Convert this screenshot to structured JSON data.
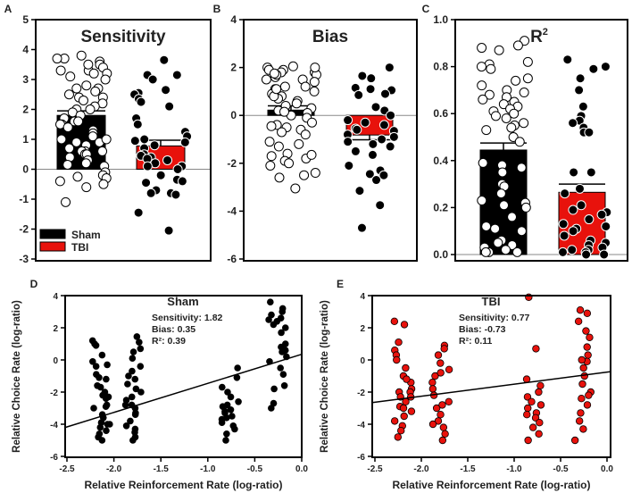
{
  "colors": {
    "sham": "#000000",
    "tbi": "#e8120c",
    "zero_line": "#888888"
  },
  "chart_data": [
    {
      "panel": "A",
      "type": "bar",
      "title": "Sensitivity",
      "ylim": [
        -3,
        5
      ],
      "yticks": [
        "5",
        "4",
        "3",
        "2",
        "1",
        "0",
        "-1",
        "-2",
        "-3"
      ],
      "legend": {
        "placement": "bottom-left",
        "entries": [
          "Sham",
          "TBI"
        ]
      },
      "series": [
        {
          "name": "Sham",
          "mean": 1.8,
          "sem": 0.15,
          "points": [
            3.7,
            3.8,
            3.6,
            3.5,
            3.4,
            3.3,
            3.3,
            3.2,
            3.1,
            3.0,
            2.8,
            2.7,
            2.6,
            2.5,
            2.4,
            2.4,
            2.3,
            2.2,
            2.1,
            2.0,
            1.9,
            1.8,
            1.7,
            1.6,
            1.5,
            1.5,
            1.4,
            1.3,
            1.2,
            1.1,
            1.0,
            0.9,
            0.9,
            0.8,
            0.7,
            0.6,
            0.6,
            0.5,
            0.5,
            0.4,
            0.3,
            0.2,
            0.15,
            0.1,
            -0.1,
            -0.2,
            -0.25,
            -0.3,
            -0.4,
            -0.5,
            -0.6,
            -1.1,
            3.7,
            3.5,
            3.2,
            2.7,
            2.0,
            1.6,
            1.0,
            0.6
          ]
        },
        {
          "name": "TBI",
          "mean": 0.78,
          "sem": 0.19,
          "points": [
            3.65,
            3.15,
            3.15,
            3.0,
            2.65,
            2.55,
            2.5,
            2.35,
            2.25,
            2.1,
            1.7,
            1.5,
            1.25,
            1.1,
            1.0,
            0.95,
            0.9,
            0.8,
            0.7,
            0.5,
            0.45,
            0.4,
            0.35,
            0.3,
            0.2,
            0.1,
            0.1,
            0.0,
            -0.2,
            -0.35,
            -0.4,
            -0.45,
            -0.7,
            -0.8,
            -0.8,
            -0.85,
            -1.45,
            -2.05
          ]
        }
      ]
    },
    {
      "panel": "B",
      "type": "bar",
      "title": "Bias",
      "ylim": [
        -6,
        4
      ],
      "yticks": [
        "4",
        "2",
        "0",
        "-2",
        "-4",
        "-6"
      ],
      "series": [
        {
          "name": "Sham",
          "mean": 0.22,
          "sem": 0.18,
          "points": [
            2.0,
            1.9,
            1.8,
            1.7,
            1.6,
            1.5,
            1.4,
            1.2,
            1.1,
            1.0,
            0.9,
            0.8,
            0.7,
            0.6,
            0.4,
            0.3,
            0.2,
            0.1,
            0.0,
            -0.1,
            -0.3,
            -0.4,
            -0.5,
            -0.6,
            -0.7,
            -0.8,
            -1.1,
            -1.2,
            -1.3,
            -1.6,
            -1.7,
            -1.8,
            -1.9,
            -2.0,
            -2.1,
            -2.4,
            -2.5,
            -2.6,
            -3.05,
            2.0,
            1.9,
            1.8,
            1.7,
            1.5,
            1.2,
            1.0,
            0.8,
            0.5,
            2.05,
            1.75,
            1.1,
            0.15,
            -0.45,
            -1.65
          ]
        },
        {
          "name": "TBI",
          "mean": -0.82,
          "sem": 0.2,
          "points": [
            2.0,
            1.65,
            1.55,
            1.15,
            1.1,
            1.05,
            0.9,
            0.85,
            0.35,
            0.2,
            0.0,
            -0.2,
            -0.3,
            -0.4,
            -0.55,
            -0.6,
            -0.65,
            -0.8,
            -0.9,
            -1.0,
            -1.1,
            -1.2,
            -1.3,
            -1.5,
            -1.65,
            -2.1,
            -2.3,
            -2.45,
            -2.5,
            -2.7,
            -3.15,
            -3.75,
            -4.7
          ]
        }
      ]
    },
    {
      "panel": "C",
      "type": "bar",
      "title": "R",
      "title_sup": "2",
      "ylim": [
        0,
        1.0
      ],
      "yticks": [
        "1.0",
        "0.8",
        "0.6",
        "0.4",
        "0.2",
        "0.0"
      ],
      "series": [
        {
          "name": "Sham",
          "mean": 0.445,
          "sem": 0.03,
          "points": [
            0.91,
            0.88,
            0.87,
            0.89,
            0.81,
            0.79,
            0.82,
            0.8,
            0.75,
            0.74,
            0.72,
            0.7,
            0.69,
            0.68,
            0.67,
            0.66,
            0.65,
            0.64,
            0.63,
            0.62,
            0.61,
            0.6,
            0.59,
            0.58,
            0.56,
            0.55,
            0.54,
            0.53,
            0.5,
            0.48,
            0.39,
            0.38,
            0.37,
            0.35,
            0.3,
            0.29,
            0.26,
            0.23,
            0.22,
            0.21,
            0.2,
            0.16,
            0.12,
            0.11,
            0.1,
            0.06,
            0.05,
            0.04,
            0.03,
            0.02,
            0.01,
            0.01,
            0.01
          ]
        },
        {
          "name": "TBI",
          "mean": 0.265,
          "sem": 0.035,
          "points": [
            0.83,
            0.8,
            0.79,
            0.75,
            0.7,
            0.63,
            0.59,
            0.57,
            0.56,
            0.54,
            0.52,
            0.52,
            0.35,
            0.35,
            0.35,
            0.28,
            0.26,
            0.21,
            0.19,
            0.18,
            0.17,
            0.15,
            0.13,
            0.12,
            0.11,
            0.1,
            0.08,
            0.06,
            0.05,
            0.04,
            0.03,
            0.02,
            0.02,
            0.01,
            0.01,
            0.0,
            0.0
          ]
        }
      ]
    },
    {
      "panel": "D",
      "type": "scatter",
      "title": "Sham",
      "annotations": [
        "Sensitivity: 1.82",
        "Bias: 0.35",
        "R²: 0.39"
      ],
      "xlabel": "Relative Reinforcement Rate (log-ratio)",
      "ylabel": "Relative Choice Rate (log-ratio)",
      "xlim": [
        -2.5,
        0.0
      ],
      "ylim": [
        -6,
        4
      ],
      "xticks": [
        "-2.5",
        "-2.0",
        "-1.5",
        "-1.0",
        "-0.5",
        "0.0"
      ],
      "yticks": [
        "4",
        "2",
        "0",
        "-2",
        "-4",
        "-6"
      ],
      "fit": {
        "slope": 1.82,
        "intercept": 0.35
      },
      "clusters": [
        {
          "x": -2.14,
          "y": [
            1.2,
            1.0,
            0.9,
            0.3,
            -0.1,
            -0.3,
            -0.4,
            -0.9,
            -1.1,
            -1.2,
            -1.6,
            -2.0,
            -2.3,
            -2.4,
            -2.8,
            -2.9,
            -3.4,
            -3.6,
            -3.9,
            -4.0,
            -4.2,
            -4.4,
            -4.6,
            -4.8,
            -5.0,
            -3.0,
            -1.7,
            -4.0,
            -2.2
          ]
        },
        {
          "x": -1.8,
          "y": [
            1.1,
            1.45,
            0.7,
            0.5,
            0.1,
            -0.4,
            -0.7,
            -1.0,
            -1.2,
            -1.5,
            -1.8,
            -2.0,
            -2.3,
            -2.5,
            -2.8,
            -3.0,
            -3.3,
            -3.4,
            -3.8,
            -4.1,
            -4.3,
            -4.5,
            -4.8,
            -5.0,
            -2.8
          ]
        },
        {
          "x": -0.77,
          "y": [
            -0.5,
            -1.1,
            -1.7,
            -2.0,
            -2.3,
            -2.6,
            -2.9,
            -3.1,
            -3.3,
            -3.5,
            -3.7,
            -3.9,
            -4.1,
            -4.3,
            -4.6,
            -5.0,
            -2.8,
            -3.2,
            -3.6
          ]
        },
        {
          "x": -0.26,
          "y": [
            3.6,
            3.2,
            3.0,
            2.8,
            2.6,
            2.4,
            2.2,
            2.0,
            1.7,
            1.0,
            0.8,
            0.5,
            0.2,
            -0.1,
            -0.5,
            -0.9,
            -1.6,
            -1.8,
            -3.0,
            -2.7,
            2.5,
            0.6
          ]
        }
      ]
    },
    {
      "panel": "E",
      "type": "scatter",
      "title": "TBI",
      "annotations": [
        "Sensitivity: 0.77",
        "Bias: -0.73",
        "R²: 0.11"
      ],
      "xlabel": "Relative Reinforcement Rate (log-ratio)",
      "ylabel": "Relative Choice Rate (log-ratio)",
      "xlim": [
        -2.5,
        0.0
      ],
      "ylim": [
        -6,
        4
      ],
      "xticks": [
        "-2.5",
        "-2.0",
        "-1.5",
        "-1.0",
        "-0.5",
        "0.0"
      ],
      "yticks": [
        "4",
        "2",
        "0",
        "-2",
        "-4",
        "-6"
      ],
      "fit": {
        "slope": 0.77,
        "intercept": -0.73
      },
      "clusters": [
        {
          "x": -2.2,
          "y": [
            2.4,
            2.2,
            1.1,
            0.6,
            0.3,
            0.0,
            -0.5,
            -1.0,
            -1.4,
            -1.8,
            -2.0,
            -2.3,
            -2.6,
            -2.9,
            -3.2,
            -3.5,
            -3.8,
            -4.1,
            -4.4,
            -4.8,
            -2.0,
            -2.3,
            -1.2,
            -3.0
          ]
        },
        {
          "x": -1.8,
          "y": [
            0.9,
            0.7,
            0.3,
            -0.2,
            -0.6,
            -1.0,
            -1.4,
            -1.8,
            -2.2,
            -2.6,
            -3.0,
            -3.4,
            -3.8,
            -4.2,
            -4.6,
            -5.0,
            -0.8,
            -2.8,
            -4.0
          ]
        },
        {
          "x": -0.78,
          "y": [
            3.9,
            0.7,
            -1.2,
            -1.6,
            -2.0,
            -2.3,
            -2.6,
            -3.0,
            -3.3,
            -3.6,
            -3.9,
            -4.2,
            -4.6,
            -5.0,
            -2.8,
            -3.4
          ]
        },
        {
          "x": -0.27,
          "y": [
            3.1,
            2.9,
            2.4,
            1.8,
            1.4,
            0.8,
            0.3,
            -0.1,
            -0.5,
            -1.0,
            -1.5,
            -2.0,
            -2.4,
            -2.8,
            -3.3,
            -3.8,
            -4.3,
            -5.0,
            0.0,
            -2.2
          ]
        }
      ]
    }
  ]
}
